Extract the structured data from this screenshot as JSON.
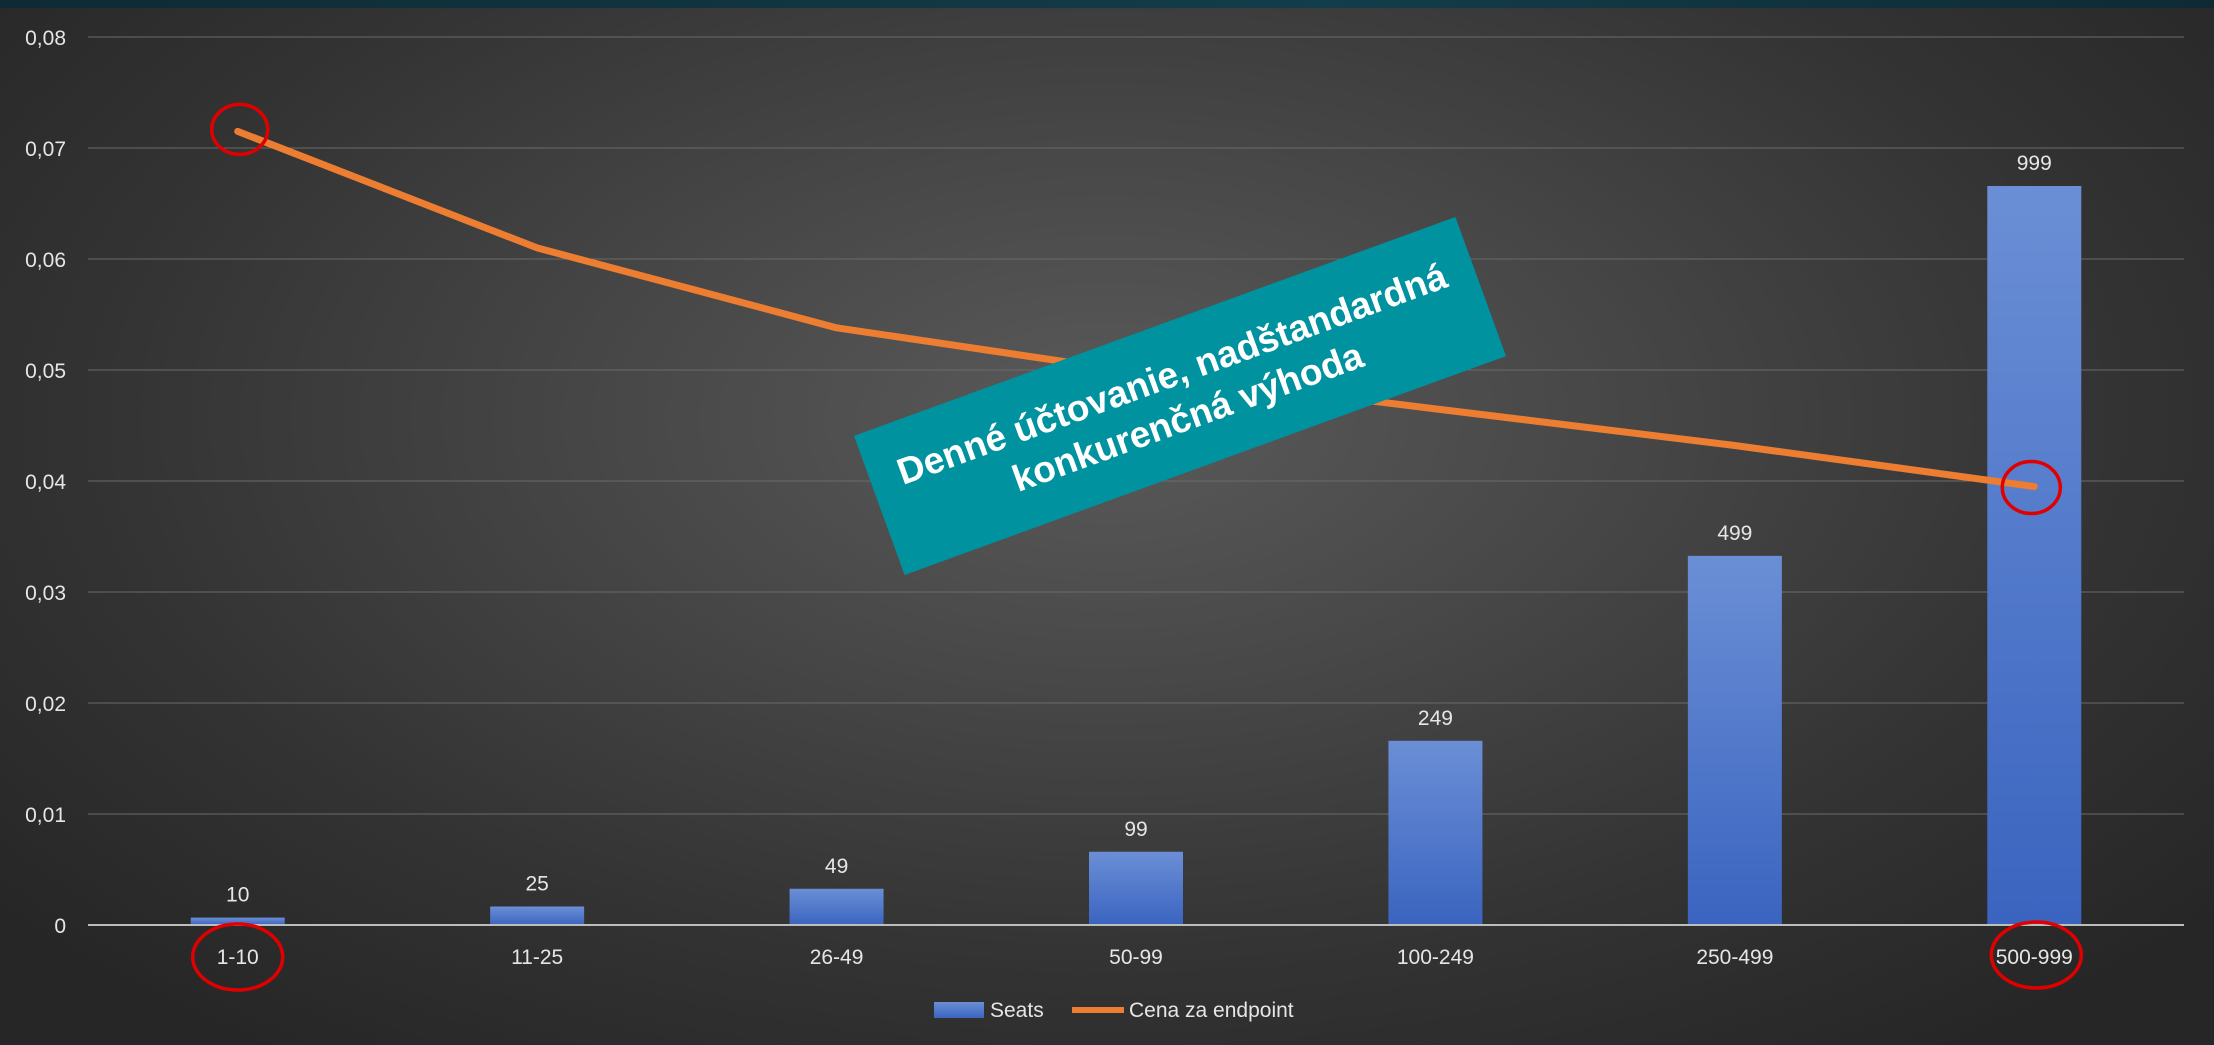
{
  "chart_data": {
    "type": "bar",
    "categories": [
      "1-10",
      "11-25",
      "26-49",
      "50-99",
      "100-249",
      "250-499",
      "500-999"
    ],
    "series": [
      {
        "name": "Seats",
        "type": "bar",
        "values": [
          10,
          25,
          49,
          99,
          249,
          499,
          999
        ],
        "color": "#4472c4"
      },
      {
        "name": "Cena za endpoint",
        "type": "line",
        "values": [
          0.0715,
          0.061,
          0.0538,
          0.0498,
          0.0465,
          0.0432,
          0.0395
        ],
        "color": "#ed7d31"
      }
    ],
    "data_labels": [
      "10",
      "25",
      "49",
      "99",
      "249",
      "499",
      "999"
    ],
    "y_ticks": [
      "0",
      "0,01",
      "0,02",
      "0,03",
      "0,04",
      "0,05",
      "0,06",
      "0,07",
      "0,08"
    ],
    "ylim": [
      0,
      0.08
    ],
    "grid": true,
    "legend": "bottom",
    "title": "",
    "xlabel": "",
    "ylabel": "",
    "annotation": {
      "line1": "Denné účtovanie, nadštandardná",
      "line2": "konkurenčná výhoda",
      "color": "#00929f"
    },
    "highlight_color": "#e00000"
  }
}
